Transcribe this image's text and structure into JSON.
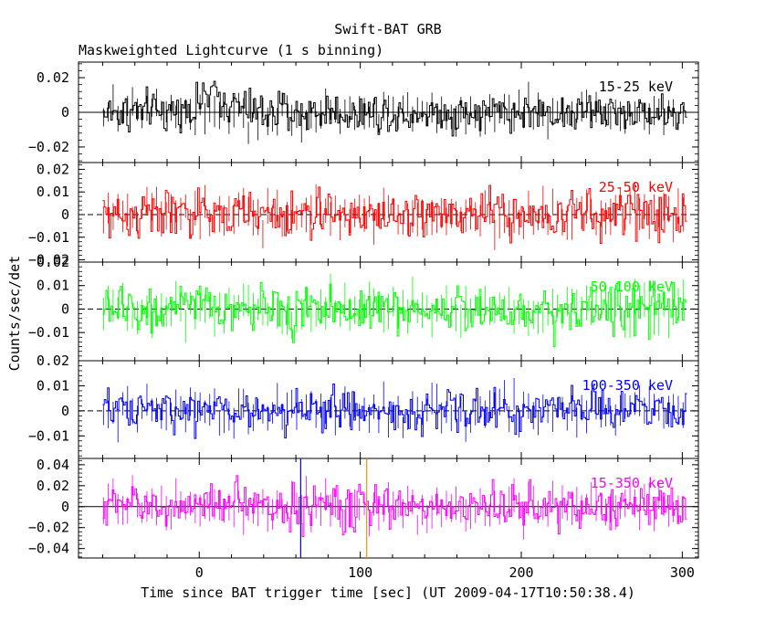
{
  "title": "Swift-BAT GRB",
  "subtitle": "Maskweighted Lightcurve (1 s binning)",
  "chart_data": {
    "type": "line",
    "title": "Swift-BAT GRB",
    "subtitle": "Maskweighted Lightcurve (1 s binning)",
    "xlabel": "Time since BAT trigger time [sec] (UT 2009-04-17T10:50:38.4)",
    "ylabel": "Counts/sec/det",
    "xlim": [
      -75,
      310
    ],
    "x_ticks": [
      0,
      100,
      200,
      300
    ],
    "x_tick_labels": [
      "0",
      "100",
      "200",
      "300"
    ],
    "data_x_range": [
      -60,
      302
    ],
    "binning_sec": 1,
    "markers": [
      {
        "name": "blue-marker",
        "x": 63,
        "color": "#0000ff"
      },
      {
        "name": "orange-marker",
        "x": 104,
        "color": "#ff8c00"
      }
    ],
    "panels": [
      {
        "band": "15-25 keV",
        "color": "#000000",
        "ylim": [
          -0.029,
          0.029
        ],
        "y_ticks": [
          -0.02,
          0,
          0.02
        ],
        "y_tick_labels": [
          "−0.02",
          "0",
          "0.02"
        ],
        "noise_sd": 0.0065,
        "bumps": [
          {
            "x": 8,
            "amp": 0.008,
            "width": 10
          }
        ],
        "zero_line": "solid"
      },
      {
        "band": "25-50 keV",
        "color": "#ff0000",
        "ylim": [
          -0.021,
          0.023
        ],
        "y_ticks": [
          -0.02,
          -0.01,
          0,
          0.01,
          0.02
        ],
        "y_tick_labels": [
          "−0.02",
          "−0.01",
          "0",
          "0.01",
          "0.02"
        ],
        "noise_sd": 0.0058,
        "bumps": [],
        "zero_line": "dashed"
      },
      {
        "band": "50-100 keV",
        "color": "#00ff00",
        "ylim": [
          -0.022,
          0.02
        ],
        "y_ticks": [
          -0.01,
          0,
          0.01,
          0.02
        ],
        "y_tick_labels": [
          "−0.01",
          "0",
          "0.01",
          "0.02"
        ],
        "noise_sd": 0.0055,
        "bumps": [],
        "zero_line": "dashed"
      },
      {
        "band": "100-350 keV",
        "color": "#0000ff",
        "ylim": [
          -0.019,
          0.02
        ],
        "y_ticks": [
          -0.01,
          0,
          0.01,
          0.02
        ],
        "y_tick_labels": [
          "−0.01",
          "0",
          "0.01",
          "0.02"
        ],
        "noise_sd": 0.0047,
        "bumps": [],
        "zero_line": "dashed"
      },
      {
        "band": "15-350 keV",
        "color": "#ff00ff",
        "ylim": [
          -0.049,
          0.046
        ],
        "y_ticks": [
          -0.04,
          -0.02,
          0,
          0.02,
          0.04
        ],
        "y_tick_labels": [
          "−0.04",
          "−0.02",
          "0",
          "0.02",
          "0.04"
        ],
        "noise_sd": 0.0118,
        "bumps": [
          {
            "x": 8,
            "amp": 0.006,
            "width": 10
          }
        ],
        "zero_line": "solid"
      }
    ]
  }
}
